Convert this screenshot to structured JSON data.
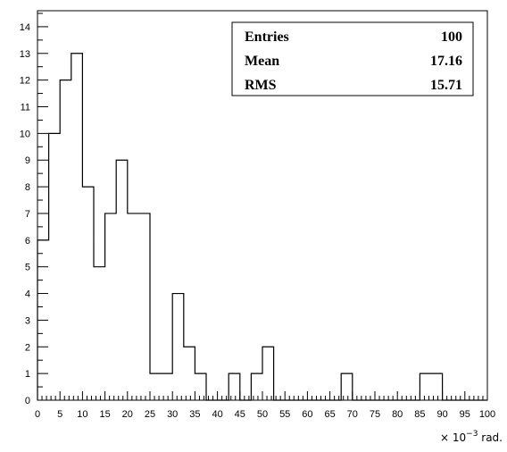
{
  "chart_data": {
    "type": "histogram",
    "x_unit_label": {
      "prefix": "× 10",
      "exponent": "−3",
      "suffix": " rad."
    },
    "xlim": [
      0,
      100
    ],
    "ylim": [
      0,
      14.6
    ],
    "bin_width": 2.5,
    "bins": [
      {
        "x0": 0,
        "x1": 2.5,
        "count": 6
      },
      {
        "x0": 2.5,
        "x1": 5,
        "count": 10
      },
      {
        "x0": 5,
        "x1": 7.5,
        "count": 12
      },
      {
        "x0": 7.5,
        "x1": 10,
        "count": 13
      },
      {
        "x0": 10,
        "x1": 12.5,
        "count": 8
      },
      {
        "x0": 12.5,
        "x1": 15,
        "count": 5
      },
      {
        "x0": 15,
        "x1": 17.5,
        "count": 7
      },
      {
        "x0": 17.5,
        "x1": 20,
        "count": 9
      },
      {
        "x0": 20,
        "x1": 22.5,
        "count": 7
      },
      {
        "x0": 22.5,
        "x1": 25,
        "count": 7
      },
      {
        "x0": 25,
        "x1": 27.5,
        "count": 1
      },
      {
        "x0": 27.5,
        "x1": 30,
        "count": 1
      },
      {
        "x0": 30,
        "x1": 32.5,
        "count": 4
      },
      {
        "x0": 32.5,
        "x1": 35,
        "count": 2
      },
      {
        "x0": 35,
        "x1": 37.5,
        "count": 1
      },
      {
        "x0": 37.5,
        "x1": 40,
        "count": 0
      },
      {
        "x0": 40,
        "x1": 42.5,
        "count": 0
      },
      {
        "x0": 42.5,
        "x1": 45,
        "count": 1
      },
      {
        "x0": 45,
        "x1": 47.5,
        "count": 0
      },
      {
        "x0": 47.5,
        "x1": 50,
        "count": 1
      },
      {
        "x0": 50,
        "x1": 52.5,
        "count": 2
      },
      {
        "x0": 52.5,
        "x1": 55,
        "count": 0
      },
      {
        "x0": 55,
        "x1": 57.5,
        "count": 0
      },
      {
        "x0": 57.5,
        "x1": 60,
        "count": 0
      },
      {
        "x0": 60,
        "x1": 62.5,
        "count": 0
      },
      {
        "x0": 62.5,
        "x1": 65,
        "count": 0
      },
      {
        "x0": 65,
        "x1": 67.5,
        "count": 0
      },
      {
        "x0": 67.5,
        "x1": 70,
        "count": 1
      },
      {
        "x0": 70,
        "x1": 72.5,
        "count": 0
      },
      {
        "x0": 72.5,
        "x1": 75,
        "count": 0
      },
      {
        "x0": 75,
        "x1": 77.5,
        "count": 0
      },
      {
        "x0": 77.5,
        "x1": 80,
        "count": 0
      },
      {
        "x0": 80,
        "x1": 82.5,
        "count": 0
      },
      {
        "x0": 82.5,
        "x1": 85,
        "count": 0
      },
      {
        "x0": 85,
        "x1": 87.5,
        "count": 1
      },
      {
        "x0": 87.5,
        "x1": 90,
        "count": 1
      },
      {
        "x0": 90,
        "x1": 92.5,
        "count": 0
      },
      {
        "x0": 92.5,
        "x1": 95,
        "count": 0
      },
      {
        "x0": 95,
        "x1": 97.5,
        "count": 0
      },
      {
        "x0": 97.5,
        "x1": 100,
        "count": 0
      }
    ],
    "x_ticks": [
      "0",
      "5",
      "10",
      "15",
      "20",
      "25",
      "30",
      "35",
      "40",
      "45",
      "50",
      "55",
      "60",
      "65",
      "70",
      "75",
      "80",
      "85",
      "90",
      "95",
      "100"
    ],
    "y_ticks": [
      "0",
      "1",
      "2",
      "3",
      "4",
      "5",
      "6",
      "7",
      "8",
      "9",
      "10",
      "11",
      "12",
      "13",
      "14"
    ],
    "stats": [
      {
        "label": "Entries",
        "value": "100"
      },
      {
        "label": "Mean",
        "value": "17.16"
      },
      {
        "label": "RMS",
        "value": "15.71"
      }
    ],
    "line_color": "#000000",
    "background": "#ffffff"
  }
}
